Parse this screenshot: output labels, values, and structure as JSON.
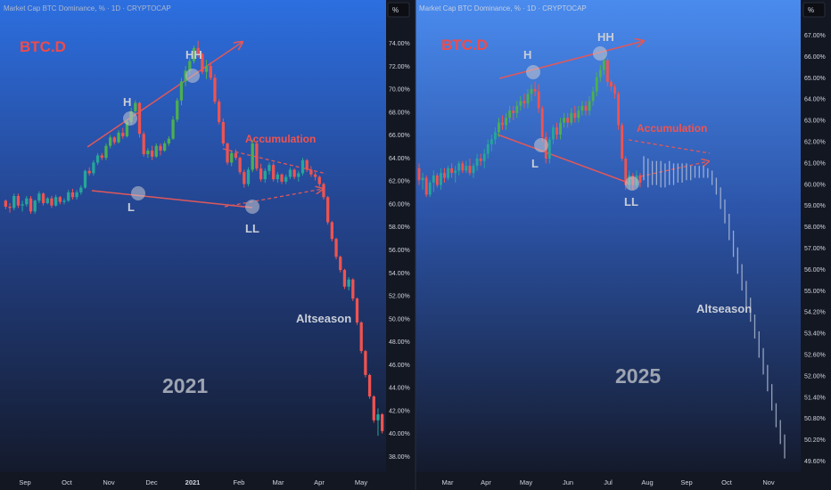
{
  "charts": [
    {
      "id": "left",
      "header": "Market Cap BTC Dominance, % · 1D · CRYPTOCAP",
      "unit_button": "%",
      "symbol": "BTC.D",
      "year": "2021",
      "price_labels": [
        "74.00%",
        "72.00%",
        "70.00%",
        "68.00%",
        "66.00%",
        "64.00%",
        "62.00%",
        "60.00%",
        "58.00%",
        "56.00%",
        "54.00%",
        "52.00%",
        "50.00%",
        "48.00%",
        "46.00%",
        "44.00%",
        "42.00%",
        "40.00%",
        "38.00%"
      ],
      "time_labels": [
        "Sep",
        "Oct",
        "Nov",
        "Dec",
        "2021",
        "Feb",
        "Mar",
        "Apr",
        "May"
      ],
      "annotations": {
        "H": "H",
        "HH": "HH",
        "L": "L",
        "LL": "LL",
        "accumulation": "Accumulation",
        "altseason": "Altseason"
      }
    },
    {
      "id": "right",
      "header": "Market Cap BTC Dominance, % · 1D · CRYPTOCAP",
      "unit_button": "%",
      "symbol": "BTC.D",
      "year": "2025",
      "price_labels": [
        "67.00%",
        "66.00%",
        "65.00%",
        "64.00%",
        "63.00%",
        "62.00%",
        "61.00%",
        "60.00%",
        "59.00%",
        "58.00%",
        "57.00%",
        "56.00%",
        "55.00%",
        "54.20%",
        "53.40%",
        "52.60%",
        "52.00%",
        "51.40%",
        "50.80%",
        "50.20%",
        "49.60%"
      ],
      "time_labels": [
        "Mar",
        "Apr",
        "May",
        "Jun",
        "Jul",
        "Aug",
        "Sep",
        "Oct",
        "Nov"
      ],
      "annotations": {
        "H": "H",
        "HH": "HH",
        "L": "L",
        "LL": "LL",
        "accumulation": "Accumulation",
        "altseason": "Altseason"
      }
    }
  ],
  "chart_data": [
    {
      "type": "candlestick",
      "title": "BTC.D 2021",
      "y_unit": "%",
      "ylim": [
        37.2,
        75.2
      ],
      "candles_ohlc": [
        [
          59.2,
          59.3,
          58.5,
          58.7
        ],
        [
          58.7,
          59.0,
          58.2,
          58.6
        ],
        [
          58.6,
          59.8,
          58.4,
          59.6
        ],
        [
          59.6,
          59.8,
          58.6,
          58.8
        ],
        [
          58.8,
          59.2,
          58.3,
          58.9
        ],
        [
          58.9,
          59.6,
          58.7,
          59.4
        ],
        [
          59.4,
          59.6,
          58.1,
          58.3
        ],
        [
          58.3,
          59.3,
          58.1,
          59.2
        ],
        [
          59.2,
          60.0,
          59.0,
          59.8
        ],
        [
          59.8,
          59.9,
          58.8,
          59.0
        ],
        [
          59.0,
          59.5,
          58.9,
          59.4
        ],
        [
          59.4,
          59.6,
          58.6,
          58.8
        ],
        [
          58.8,
          59.7,
          58.7,
          59.5
        ],
        [
          59.5,
          59.6,
          58.9,
          59.1
        ],
        [
          59.1,
          59.4,
          58.9,
          59.2
        ],
        [
          59.2,
          60.1,
          59.1,
          59.9
        ],
        [
          59.9,
          60.2,
          59.3,
          59.5
        ],
        [
          59.5,
          60.1,
          59.3,
          59.9
        ],
        [
          59.9,
          60.5,
          59.7,
          60.3
        ],
        [
          60.3,
          61.8,
          60.2,
          61.7
        ],
        [
          61.7,
          62.0,
          61.3,
          61.5
        ],
        [
          61.5,
          62.6,
          61.3,
          62.4
        ],
        [
          62.4,
          63.2,
          62.2,
          63.0
        ],
        [
          63.0,
          63.2,
          62.6,
          62.8
        ],
        [
          62.8,
          64.0,
          62.6,
          63.8
        ],
        [
          63.8,
          64.7,
          63.6,
          64.5
        ],
        [
          64.5,
          64.6,
          63.9,
          64.1
        ],
        [
          64.1,
          65.1,
          64.0,
          64.9
        ],
        [
          64.9,
          65.3,
          64.4,
          64.6
        ],
        [
          64.6,
          66.0,
          64.5,
          65.8
        ],
        [
          65.8,
          67.0,
          65.6,
          66.7
        ],
        [
          66.7,
          67.6,
          66.5,
          67.4
        ],
        [
          67.4,
          67.5,
          64.5,
          64.8
        ],
        [
          64.8,
          65.0,
          62.9,
          63.1
        ],
        [
          63.1,
          63.6,
          62.8,
          63.4
        ],
        [
          63.4,
          63.8,
          62.6,
          62.9
        ],
        [
          62.9,
          64.0,
          62.8,
          63.8
        ],
        [
          63.8,
          64.0,
          63.0,
          63.4
        ],
        [
          63.4,
          64.2,
          63.3,
          64.0
        ],
        [
          64.0,
          64.6,
          63.8,
          64.4
        ],
        [
          64.4,
          66.3,
          64.3,
          66.0
        ],
        [
          66.0,
          67.8,
          65.8,
          67.6
        ],
        [
          67.6,
          69.5,
          67.2,
          69.2
        ],
        [
          69.2,
          70.5,
          68.8,
          70.1
        ],
        [
          70.1,
          71.2,
          69.8,
          70.9
        ],
        [
          70.9,
          72.2,
          70.7,
          72.0
        ],
        [
          72.0,
          72.6,
          71.2,
          71.5
        ],
        [
          71.5,
          71.6,
          69.8,
          70.0
        ],
        [
          70.0,
          71.0,
          69.4,
          70.5
        ],
        [
          70.5,
          70.8,
          69.3,
          69.5
        ],
        [
          69.5,
          69.8,
          67.3,
          67.5
        ],
        [
          67.5,
          67.7,
          65.6,
          65.8
        ],
        [
          65.8,
          66.1,
          63.8,
          64.0
        ],
        [
          64.0,
          64.1,
          62.2,
          62.4
        ],
        [
          62.4,
          63.4,
          62.1,
          63.2
        ],
        [
          63.2,
          63.5,
          62.6,
          62.8
        ],
        [
          62.8,
          62.9,
          61.4,
          61.6
        ],
        [
          61.6,
          61.8,
          60.3,
          60.6
        ],
        [
          60.6,
          62.0,
          60.4,
          61.8
        ],
        [
          61.8,
          64.3,
          61.6,
          64.0
        ],
        [
          64.0,
          64.2,
          61.7,
          61.9
        ],
        [
          61.9,
          62.3,
          60.8,
          61.0
        ],
        [
          61.0,
          61.9,
          60.7,
          61.7
        ],
        [
          61.7,
          62.4,
          61.4,
          62.2
        ],
        [
          62.2,
          62.4,
          60.8,
          61.0
        ],
        [
          61.0,
          61.6,
          60.7,
          61.4
        ],
        [
          61.4,
          61.5,
          60.6,
          60.8
        ],
        [
          60.8,
          61.4,
          60.6,
          61.2
        ],
        [
          61.2,
          62.0,
          61.0,
          61.8
        ],
        [
          61.8,
          61.9,
          61.0,
          61.2
        ],
        [
          61.2,
          61.7,
          60.8,
          61.5
        ],
        [
          61.5,
          62.8,
          61.3,
          62.6
        ],
        [
          62.6,
          62.7,
          61.6,
          61.8
        ],
        [
          61.8,
          62.1,
          61.2,
          61.4
        ],
        [
          61.4,
          61.6,
          60.9,
          61.2
        ],
        [
          61.2,
          61.3,
          60.4,
          60.6
        ],
        [
          60.6,
          60.7,
          59.3,
          59.5
        ],
        [
          59.5,
          59.6,
          57.2,
          57.4
        ],
        [
          57.4,
          57.5,
          55.8,
          56.0
        ],
        [
          56.0,
          56.1,
          54.3,
          54.5
        ],
        [
          54.5,
          54.6,
          53.2,
          53.4
        ],
        [
          53.4,
          53.5,
          51.8,
          52.0
        ],
        [
          52.0,
          52.8,
          51.7,
          52.6
        ],
        [
          52.6,
          52.7,
          50.8,
          51.0
        ],
        [
          51.0,
          51.1,
          48.8,
          49.0
        ],
        [
          49.0,
          49.1,
          46.4,
          46.6
        ],
        [
          46.6,
          46.7,
          44.4,
          44.6
        ],
        [
          44.6,
          44.7,
          42.6,
          42.8
        ],
        [
          42.8,
          42.9,
          40.6,
          40.8
        ],
        [
          40.8,
          41.8,
          39.5,
          41.3
        ],
        [
          41.3,
          41.4,
          39.7,
          39.9
        ]
      ]
    },
    {
      "type": "candlestick",
      "title": "BTC.D 2025",
      "y_unit": "%",
      "ylim": [
        49.4,
        67.3
      ],
      "candles_ohlc": [
        [
          61.7,
          61.9,
          61.0,
          61.2
        ],
        [
          61.2,
          61.5,
          60.8,
          61.3
        ],
        [
          61.3,
          61.4,
          60.5,
          60.6
        ],
        [
          60.6,
          61.2,
          60.5,
          61.1
        ],
        [
          61.1,
          61.6,
          60.7,
          61.4
        ],
        [
          61.4,
          61.5,
          60.9,
          61.0
        ],
        [
          61.0,
          61.7,
          60.8,
          61.5
        ],
        [
          61.5,
          61.7,
          61.1,
          61.3
        ],
        [
          61.3,
          61.8,
          61.2,
          61.7
        ],
        [
          61.7,
          61.9,
          61.3,
          61.5
        ],
        [
          61.5,
          61.8,
          61.1,
          61.6
        ],
        [
          61.6,
          62.0,
          61.4,
          61.9
        ],
        [
          61.9,
          62.0,
          61.5,
          61.6
        ],
        [
          61.6,
          62.0,
          61.5,
          61.8
        ],
        [
          61.8,
          62.1,
          61.4,
          61.5
        ],
        [
          61.5,
          61.9,
          61.3,
          61.8
        ],
        [
          61.8,
          62.3,
          61.6,
          62.1
        ],
        [
          62.1,
          62.3,
          61.8,
          62.0
        ],
        [
          62.0,
          62.5,
          61.7,
          62.3
        ],
        [
          62.3,
          62.9,
          62.1,
          62.7
        ],
        [
          62.7,
          63.1,
          62.4,
          62.9
        ],
        [
          62.9,
          63.4,
          62.7,
          63.2
        ],
        [
          63.2,
          63.8,
          63.0,
          63.6
        ],
        [
          63.6,
          63.9,
          63.3,
          63.5
        ],
        [
          63.5,
          64.0,
          63.3,
          63.8
        ],
        [
          63.8,
          64.3,
          63.6,
          64.1
        ],
        [
          64.1,
          64.3,
          63.7,
          64.0
        ],
        [
          64.0,
          64.5,
          63.8,
          64.3
        ],
        [
          64.3,
          64.7,
          64.1,
          64.5
        ],
        [
          64.5,
          64.8,
          64.2,
          64.4
        ],
        [
          64.4,
          65.0,
          64.2,
          64.8
        ],
        [
          64.8,
          65.2,
          64.5,
          65.0
        ],
        [
          65.0,
          65.3,
          64.7,
          64.9
        ],
        [
          64.9,
          65.2,
          64.0,
          64.2
        ],
        [
          64.2,
          64.3,
          62.8,
          63.0
        ],
        [
          63.0,
          63.2,
          61.9,
          62.1
        ],
        [
          62.1,
          63.0,
          61.9,
          62.9
        ],
        [
          62.9,
          63.5,
          62.7,
          63.4
        ],
        [
          63.4,
          63.6,
          62.9,
          63.1
        ],
        [
          63.1,
          63.8,
          62.9,
          63.6
        ],
        [
          63.6,
          64.0,
          63.4,
          63.8
        ],
        [
          63.8,
          64.0,
          63.4,
          63.6
        ],
        [
          63.6,
          64.2,
          63.5,
          64.0
        ],
        [
          64.0,
          64.3,
          63.6,
          63.8
        ],
        [
          63.8,
          64.3,
          63.6,
          64.1
        ],
        [
          64.1,
          64.5,
          63.9,
          64.3
        ],
        [
          64.3,
          64.5,
          63.9,
          64.1
        ],
        [
          64.1,
          64.7,
          63.9,
          64.5
        ],
        [
          64.5,
          65.1,
          64.3,
          64.9
        ],
        [
          64.9,
          65.7,
          64.7,
          65.5
        ],
        [
          65.5,
          66.0,
          65.3,
          65.8
        ],
        [
          65.8,
          66.4,
          65.6,
          66.2
        ],
        [
          66.2,
          66.3,
          65.1,
          65.3
        ],
        [
          65.3,
          65.4,
          64.9,
          65.1
        ],
        [
          65.1,
          65.2,
          64.6,
          64.8
        ],
        [
          64.8,
          64.9,
          63.3,
          63.5
        ],
        [
          63.5,
          63.6,
          62.0,
          62.1
        ],
        [
          62.1,
          62.2,
          60.8,
          61.0
        ],
        [
          61.0,
          61.6,
          60.8,
          61.4
        ],
        [
          61.4,
          61.5,
          60.8,
          61.0
        ],
        [
          61.0,
          61.6,
          60.9,
          61.4
        ],
        [
          61.4,
          61.5,
          60.9,
          61.1
        ]
      ],
      "projection_ranges": [
        [
          61.2,
          62.2
        ],
        [
          60.9,
          62.1
        ],
        [
          61.0,
          62.0
        ],
        [
          61.0,
          62.0
        ],
        [
          60.9,
          62.0
        ],
        [
          60.9,
          61.9
        ],
        [
          61.0,
          62.0
        ],
        [
          61.0,
          61.9
        ],
        [
          61.1,
          61.9
        ],
        [
          61.1,
          61.9
        ],
        [
          61.2,
          61.9
        ],
        [
          61.2,
          61.8
        ],
        [
          61.3,
          61.8
        ],
        [
          61.3,
          61.8
        ],
        [
          61.3,
          61.8
        ],
        [
          61.3,
          61.7
        ],
        [
          61.0,
          61.6
        ],
        [
          60.6,
          61.3
        ],
        [
          60.0,
          60.9
        ],
        [
          59.4,
          60.4
        ],
        [
          58.7,
          59.8
        ],
        [
          58.0,
          59.1
        ],
        [
          57.3,
          58.4
        ],
        [
          56.6,
          57.7
        ],
        [
          55.9,
          57.0
        ],
        [
          55.3,
          56.3
        ],
        [
          54.6,
          55.6
        ],
        [
          53.8,
          54.9
        ],
        [
          53.1,
          54.2
        ],
        [
          52.4,
          53.5
        ],
        [
          51.6,
          52.7
        ],
        [
          50.9,
          51.9
        ],
        [
          50.2,
          51.2
        ],
        [
          49.6,
          50.6
        ]
      ]
    }
  ],
  "colors": {
    "bull": "#26a69a",
    "bull_bright": "#4caf50",
    "bear": "#ef5350",
    "trend": "#e0585a",
    "label_gray": "#c9ced8",
    "axis_text": "#d1d4dc"
  }
}
